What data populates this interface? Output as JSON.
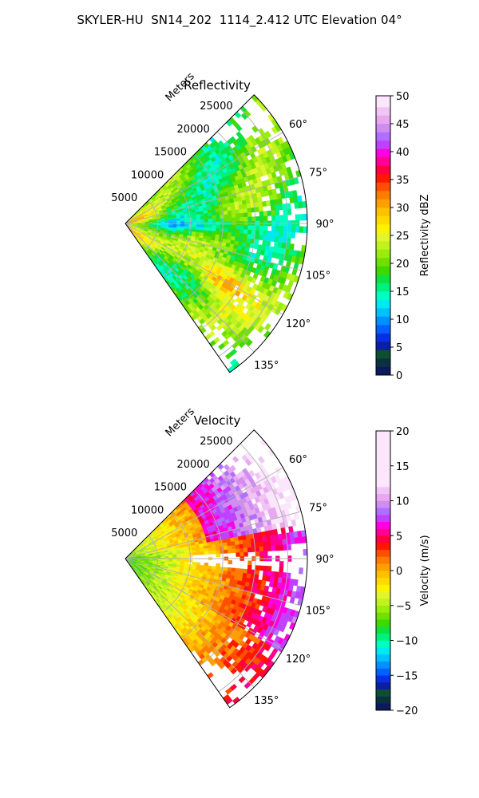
{
  "figure": {
    "title": "SKYLER-HU  SN14_202  1114_2.412 UTC Elevation 04°"
  },
  "chart_data": [
    {
      "type": "polar-sector",
      "title": "Reflectivity",
      "range_label": "Meters",
      "range_ticks": [
        5000,
        10000,
        15000,
        20000,
        25000
      ],
      "range_tick_labels": [
        "5000",
        "10000",
        "15000",
        "20000",
        "25000"
      ],
      "range_max": 28000,
      "azimuth_range_deg": [
        45,
        145
      ],
      "azimuth_ticks": [
        60,
        75,
        90,
        105,
        120,
        135
      ],
      "azimuth_tick_labels": [
        "60°",
        "75°",
        "90°",
        "105°",
        "120°",
        "135°"
      ],
      "grid": true,
      "colorbar": {
        "label": "Reflectivity dBZ",
        "min": 0,
        "max": 50,
        "ticks": [
          0,
          5,
          10,
          15,
          20,
          25,
          30,
          35,
          40,
          45,
          50
        ],
        "tick_labels": [
          "0",
          "5",
          "10",
          "15",
          "20",
          "25",
          "30",
          "35",
          "40",
          "45",
          "50"
        ],
        "colors": [
          "#0a1a5a",
          "#0b2f86",
          "#0838b8",
          "#1236ff",
          "#0068ff",
          "#00a8ff",
          "#00d8ff",
          "#00ffcc",
          "#00ff70",
          "#00ee22",
          "#22cc00",
          "#55d000",
          "#88e010",
          "#aaee20",
          "#ccf530",
          "#eef540",
          "#ffef00",
          "#ffd200",
          "#ffb000",
          "#ff8c00",
          "#ff5a00",
          "#ff2000",
          "#ff0000",
          "#ff0070",
          "#ff00b0",
          "#ff00ff",
          "#cc33ff",
          "#bb66ff",
          "#dd88ff",
          "#eeaaff",
          "#ffd0ff",
          "#ffe8ff"
        ],
        "segments": [
          {
            "from": 0,
            "to": 1.5,
            "color": "#0a1a5a"
          },
          {
            "from": 1.5,
            "to": 3,
            "color": "#0d3040"
          },
          {
            "from": 3,
            "to": 4.5,
            "color": "#0d5030"
          },
          {
            "from": 4.5,
            "to": 6,
            "color": "#0b1fa0"
          },
          {
            "from": 6,
            "to": 7.5,
            "color": "#0830e0"
          },
          {
            "from": 7.5,
            "to": 9,
            "color": "#0060ff"
          },
          {
            "from": 9,
            "to": 10.5,
            "color": "#0090ff"
          },
          {
            "from": 10.5,
            "to": 12,
            "color": "#00c0ff"
          },
          {
            "from": 12,
            "to": 13.5,
            "color": "#00e8f0"
          },
          {
            "from": 13.5,
            "to": 15,
            "color": "#00ffc0"
          },
          {
            "from": 15,
            "to": 16.5,
            "color": "#00f080"
          },
          {
            "from": 16.5,
            "to": 18,
            "color": "#10e040"
          },
          {
            "from": 18,
            "to": 19.5,
            "color": "#40d800"
          },
          {
            "from": 19.5,
            "to": 21,
            "color": "#70e000"
          },
          {
            "from": 21,
            "to": 22.5,
            "color": "#98ec10"
          },
          {
            "from": 22.5,
            "to": 24,
            "color": "#c0f220"
          },
          {
            "from": 24,
            "to": 25.5,
            "color": "#e0f530"
          },
          {
            "from": 25.5,
            "to": 27,
            "color": "#fff200"
          },
          {
            "from": 27,
            "to": 28.5,
            "color": "#ffda00"
          },
          {
            "from": 28.5,
            "to": 30,
            "color": "#ffc000"
          },
          {
            "from": 30,
            "to": 31.5,
            "color": "#ffa000"
          },
          {
            "from": 31.5,
            "to": 33,
            "color": "#ff7c00"
          },
          {
            "from": 33,
            "to": 34.5,
            "color": "#ff5000"
          },
          {
            "from": 34.5,
            "to": 36,
            "color": "#ff1800"
          },
          {
            "from": 36,
            "to": 37.5,
            "color": "#ff0040"
          },
          {
            "from": 37.5,
            "to": 39,
            "color": "#ff0090"
          },
          {
            "from": 39,
            "to": 40.5,
            "color": "#ff00e0"
          },
          {
            "from": 40.5,
            "to": 42,
            "color": "#c040ff"
          },
          {
            "from": 42,
            "to": 43.5,
            "color": "#b070ff"
          },
          {
            "from": 43.5,
            "to": 45,
            "color": "#d08cf0"
          },
          {
            "from": 45,
            "to": 46.5,
            "color": "#e8a8f0"
          },
          {
            "from": 46.5,
            "to": 48,
            "color": "#f0c4f4"
          },
          {
            "from": 48,
            "to": 50,
            "color": "#fbe6fb"
          }
        ]
      }
    },
    {
      "type": "polar-sector",
      "title": "Velocity",
      "range_label": "Meters",
      "range_ticks": [
        5000,
        10000,
        15000,
        20000,
        25000
      ],
      "range_tick_labels": [
        "5000",
        "10000",
        "15000",
        "20000",
        "25000"
      ],
      "range_max": 28000,
      "azimuth_range_deg": [
        45,
        145
      ],
      "azimuth_ticks": [
        60,
        75,
        90,
        105,
        120,
        135
      ],
      "azimuth_tick_labels": [
        "60°",
        "75°",
        "90°",
        "105°",
        "120°",
        "135°"
      ],
      "grid": true,
      "colorbar": {
        "label": "Velocity (m/s)",
        "min": -20,
        "max": 20,
        "ticks": [
          -20,
          -15,
          -10,
          -5,
          0,
          5,
          10,
          15,
          20
        ],
        "tick_labels": [
          "−20",
          "−15",
          "−10",
          "−5",
          "0",
          "5",
          "10",
          "15",
          "20"
        ],
        "segments": [
          {
            "from": -20,
            "to": -19,
            "color": "#0a1a5a"
          },
          {
            "from": -19,
            "to": -18,
            "color": "#0d3040"
          },
          {
            "from": -18,
            "to": -17,
            "color": "#0d5030"
          },
          {
            "from": -17,
            "to": -16,
            "color": "#0b1fa0"
          },
          {
            "from": -16,
            "to": -15,
            "color": "#0830e0"
          },
          {
            "from": -15,
            "to": -14,
            "color": "#0060ff"
          },
          {
            "from": -14,
            "to": -13,
            "color": "#0090ff"
          },
          {
            "from": -13,
            "to": -12,
            "color": "#00c0ff"
          },
          {
            "from": -12,
            "to": -11,
            "color": "#00e8f0"
          },
          {
            "from": -11,
            "to": -10,
            "color": "#00ffc0"
          },
          {
            "from": -10,
            "to": -9,
            "color": "#00f080"
          },
          {
            "from": -9,
            "to": -8,
            "color": "#10e040"
          },
          {
            "from": -8,
            "to": -7,
            "color": "#40d800"
          },
          {
            "from": -7,
            "to": -6,
            "color": "#70e000"
          },
          {
            "from": -6,
            "to": -5,
            "color": "#98ec10"
          },
          {
            "from": -5,
            "to": -4,
            "color": "#c0f220"
          },
          {
            "from": -4,
            "to": -3,
            "color": "#e0f530"
          },
          {
            "from": -3,
            "to": -2,
            "color": "#fff200"
          },
          {
            "from": -2,
            "to": -1,
            "color": "#ffda00"
          },
          {
            "from": -1,
            "to": 0,
            "color": "#ffc000"
          },
          {
            "from": 0,
            "to": 1,
            "color": "#ffa000"
          },
          {
            "from": 1,
            "to": 2,
            "color": "#ff7c00"
          },
          {
            "from": 2,
            "to": 3,
            "color": "#ff5000"
          },
          {
            "from": 3,
            "to": 4,
            "color": "#ff1800"
          },
          {
            "from": 4,
            "to": 5,
            "color": "#ff0040"
          },
          {
            "from": 5,
            "to": 6,
            "color": "#ff0090"
          },
          {
            "from": 6,
            "to": 7,
            "color": "#ff00e0"
          },
          {
            "from": 7,
            "to": 8,
            "color": "#c040ff"
          },
          {
            "from": 8,
            "to": 9,
            "color": "#b070ff"
          },
          {
            "from": 9,
            "to": 10,
            "color": "#d08cf0"
          },
          {
            "from": 10,
            "to": 11,
            "color": "#e8a8f0"
          },
          {
            "from": 11,
            "to": 12,
            "color": "#f0c4f4"
          },
          {
            "from": 12,
            "to": 20,
            "color": "#fbe6fb"
          }
        ]
      }
    }
  ]
}
